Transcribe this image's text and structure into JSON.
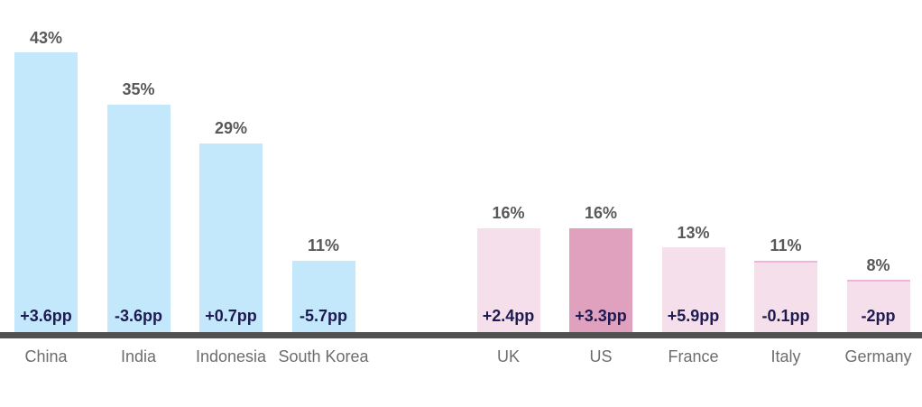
{
  "chart_data": {
    "type": "bar",
    "unit": "%",
    "ylim": [
      0,
      45
    ],
    "grid": false,
    "legend": false,
    "axis": {
      "x_line_visible": true,
      "y_axis_visible": false
    },
    "groups": [
      {
        "name": "asia-group",
        "bar_color": "#c3e7fb",
        "bars": [
          {
            "category": "China",
            "value": 43,
            "value_label": "43%",
            "change_label": "+3.6pp"
          },
          {
            "category": "India",
            "value": 35,
            "value_label": "35%",
            "change_label": "-3.6pp"
          },
          {
            "category": "Indonesia",
            "value": 29,
            "value_label": "29%",
            "change_label": "+0.7pp"
          },
          {
            "category": "South Korea",
            "value": 11,
            "value_label": "11%",
            "change_label": "-5.7pp"
          }
        ]
      },
      {
        "name": "west-group",
        "bar_color": "#f5dfea",
        "bars": [
          {
            "category": "UK",
            "value": 16,
            "value_label": "16%",
            "change_label": "+2.4pp"
          },
          {
            "category": "US",
            "value": 16,
            "value_label": "16%",
            "change_label": "+3.3pp",
            "bar_color": "#dfa1bd",
            "highlight": true
          },
          {
            "category": "France",
            "value": 13,
            "value_label": "13%",
            "change_label": "+5.9pp"
          },
          {
            "category": "Italy",
            "value": 11,
            "value_label": "11%",
            "change_label": "-0.1pp",
            "top_edge": true
          },
          {
            "category": "Germany",
            "value": 8,
            "value_label": "8%",
            "change_label": "-2pp",
            "top_edge": true
          }
        ]
      }
    ],
    "colors": {
      "value_label": "#595959",
      "change_label": "#1e1b52",
      "category_label": "#6d6d6d",
      "axis_line": "#515151",
      "bar_top_edge": "#f0b4de",
      "background": "#ffffff"
    }
  }
}
